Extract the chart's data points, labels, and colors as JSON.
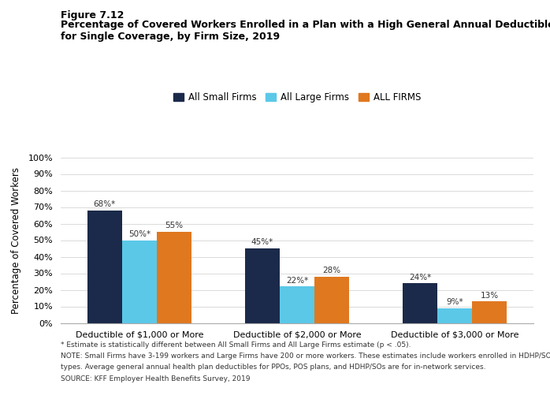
{
  "figure_label": "Figure 7.12",
  "title_line1": "Percentage of Covered Workers Enrolled in a Plan with a High General Annual Deductible",
  "title_line2": "for Single Coverage, by Firm Size, 2019",
  "categories": [
    "Deductible of $1,000 or More",
    "Deductible of $2,000 or More",
    "Deductible of $3,000 or More"
  ],
  "series": [
    {
      "label": "All Small Firms",
      "color": "#1b2a4a",
      "values": [
        68,
        45,
        24
      ]
    },
    {
      "label": "All Large Firms",
      "color": "#5bc8e8",
      "values": [
        50,
        22,
        9
      ]
    },
    {
      "label": "ALL FIRMS",
      "color": "#e07820",
      "values": [
        55,
        28,
        13
      ]
    }
  ],
  "bar_labels": [
    [
      "68%*",
      "50%*",
      "55%"
    ],
    [
      "45%*",
      "22%*",
      "28%"
    ],
    [
      "24%*",
      "9%*",
      "13%"
    ]
  ],
  "ylabel": "Percentage of Covered Workers",
  "ylim": [
    0,
    100
  ],
  "yticks": [
    0,
    10,
    20,
    30,
    40,
    50,
    60,
    70,
    80,
    90,
    100
  ],
  "ytick_labels": [
    "0%",
    "10%",
    "20%",
    "30%",
    "40%",
    "50%",
    "60%",
    "70%",
    "80%",
    "90%",
    "100%"
  ],
  "footnote1": "* Estimate is statistically different between All Small Firms and All Large Firms estimate (p < .05).",
  "footnote2": "NOTE: Small Firms have 3-199 workers and Large Firms have 200 or more workers. These estimates include workers enrolled in HDHP/SOs and other plan",
  "footnote3": "types. Average general annual health plan deductibles for PPOs, POS plans, and HDHP/SOs are for in-network services.",
  "footnote4": "SOURCE: KFF Employer Health Benefits Survey, 2019",
  "background_color": "#ffffff",
  "bar_width": 0.22
}
